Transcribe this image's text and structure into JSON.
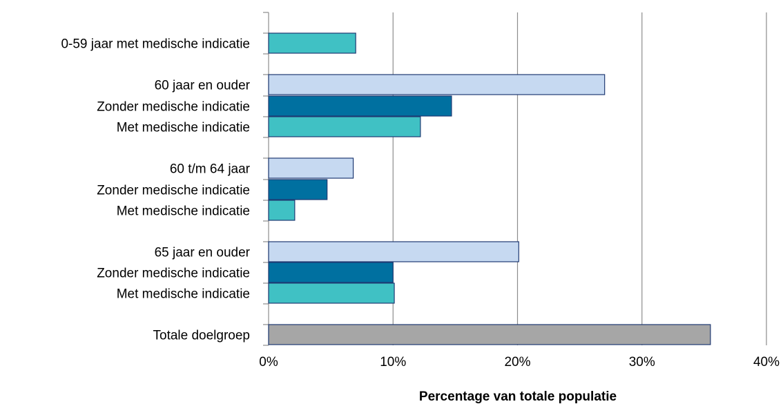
{
  "chart_data": {
    "type": "bar",
    "orientation": "horizontal",
    "categories": [
      "0-59 jaar met medische indicatie",
      "60 jaar en ouder",
      "Zonder medische indicatie",
      "Met medische indicatie",
      "60 t/m 64 jaar",
      "Zonder medische indicatie",
      "Met medische indicatie",
      "65 jaar en ouder",
      "Zonder medische indicatie",
      "Met medische indicatie",
      "Totale doelgroep"
    ],
    "values": [
      7.0,
      27.0,
      14.7,
      12.2,
      6.8,
      4.7,
      2.1,
      20.1,
      10.0,
      10.1,
      35.5
    ],
    "groups": [
      [
        0
      ],
      [
        1,
        2,
        3
      ],
      [
        4,
        5,
        6
      ],
      [
        7,
        8,
        9
      ],
      [
        10
      ]
    ],
    "bar_color_keys": [
      "met",
      "total",
      "zonder",
      "met",
      "total",
      "zonder",
      "met",
      "total",
      "zonder",
      "met",
      "doelgroep"
    ],
    "colors": {
      "met": "#40c1c4",
      "zonder": "#0070a0",
      "total": "#c6d9f1",
      "doelgroep": "#a6a6a6",
      "outline": "#1f3a73",
      "grid": "#8c8c8c"
    },
    "xlabel": "Percentage van totale populatie",
    "xticks": [
      "0%",
      "10%",
      "20%",
      "30%",
      "40%"
    ],
    "xlim": [
      0,
      40
    ],
    "grid": true,
    "legend": "none"
  }
}
